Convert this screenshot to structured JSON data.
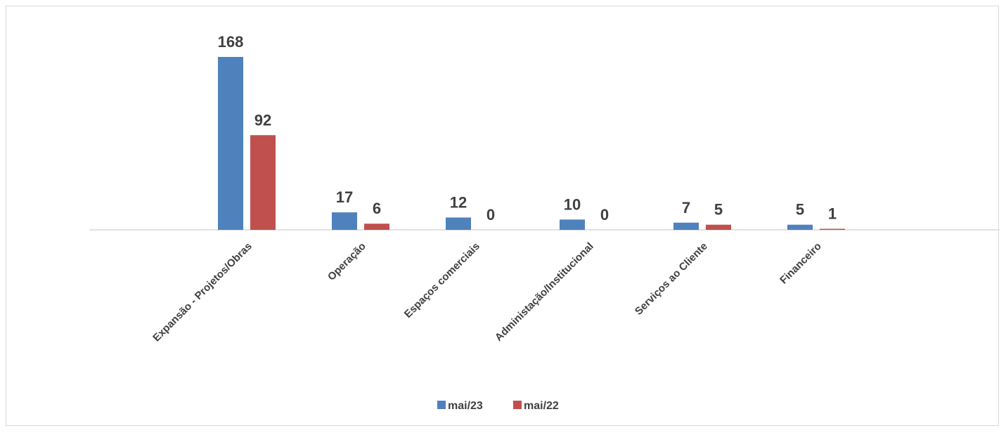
{
  "chart_data": {
    "type": "bar",
    "categories": [
      "Expansão - Projetos/Obras",
      "Operação",
      "Espaços comerciais",
      "Administação/Institucional",
      "Serviços ao Cliente",
      "Financeiro"
    ],
    "series": [
      {
        "name": "mai/23",
        "values": [
          168,
          17,
          12,
          10,
          7,
          5
        ],
        "color": "#4f81bd"
      },
      {
        "name": "mai/22",
        "values": [
          92,
          6,
          0,
          0,
          5,
          1
        ],
        "color": "#c0504d"
      }
    ],
    "title": "",
    "xlabel": "",
    "ylabel": "",
    "ylim": [
      0,
      168
    ],
    "grid": false,
    "legend": "bottom",
    "data_labels": true
  }
}
